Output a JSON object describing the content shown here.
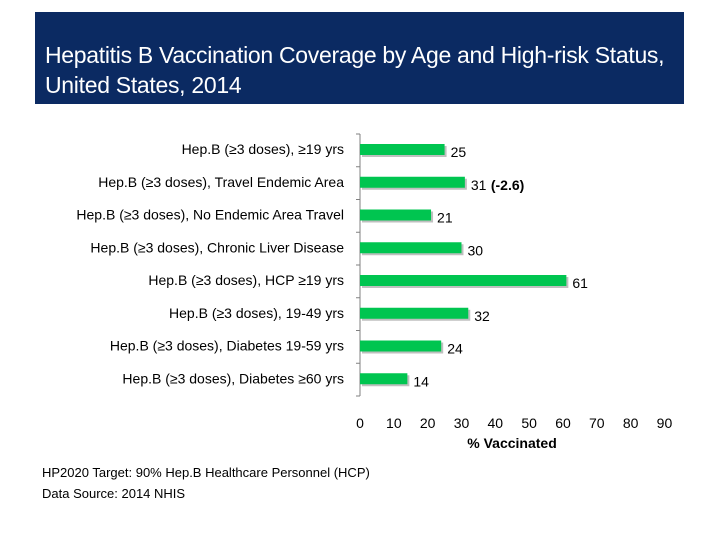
{
  "header": {
    "title": "Hepatitis B Vaccination Coverage by Age and High-risk Status, United States, 2014"
  },
  "chart_data": {
    "type": "bar",
    "orientation": "horizontal",
    "title": "Hepatitis B Vaccination Coverage by Age and High-risk Status, United States, 2014",
    "categories": [
      "Hep.B (≥3 doses), ≥19 yrs",
      "Hep.B (≥3 doses), Travel Endemic Area",
      "Hep.B (≥3 doses), No Endemic Area Travel",
      "Hep.B (≥3 doses), Chronic Liver Disease",
      "Hep.B (≥3 doses), HCP ≥19 yrs",
      "Hep.B (≥3 doses), 19-49 yrs",
      "Hep.B (≥3 doses), Diabetes 19-59 yrs",
      "Hep.B (≥3 doses), Diabetes ≥60 yrs"
    ],
    "values": [
      25,
      31,
      21,
      30,
      61,
      32,
      24,
      14
    ],
    "data_labels": [
      "25",
      "31",
      "21",
      "30",
      "61",
      "32",
      "24",
      "14"
    ],
    "annotations": [
      {
        "category_index": 1,
        "text": "(-2.6)"
      }
    ],
    "xlabel": "% Vaccinated",
    "ylabel": "",
    "xlim": [
      0,
      90
    ],
    "xticks": [
      "0",
      "10",
      "20",
      "30",
      "40",
      "50",
      "60",
      "70",
      "80",
      "90"
    ],
    "grid": false,
    "legend": "none",
    "colors": {
      "bar": "#00c550",
      "bar_shadow": "#8a8a8a",
      "axis": "#808080",
      "text": "#000000"
    }
  },
  "footer": {
    "target_note": "HP2020 Target: 90% Hep.B Healthcare Personnel (HCP)",
    "source_note": "Data Source:  2014 NHIS"
  }
}
